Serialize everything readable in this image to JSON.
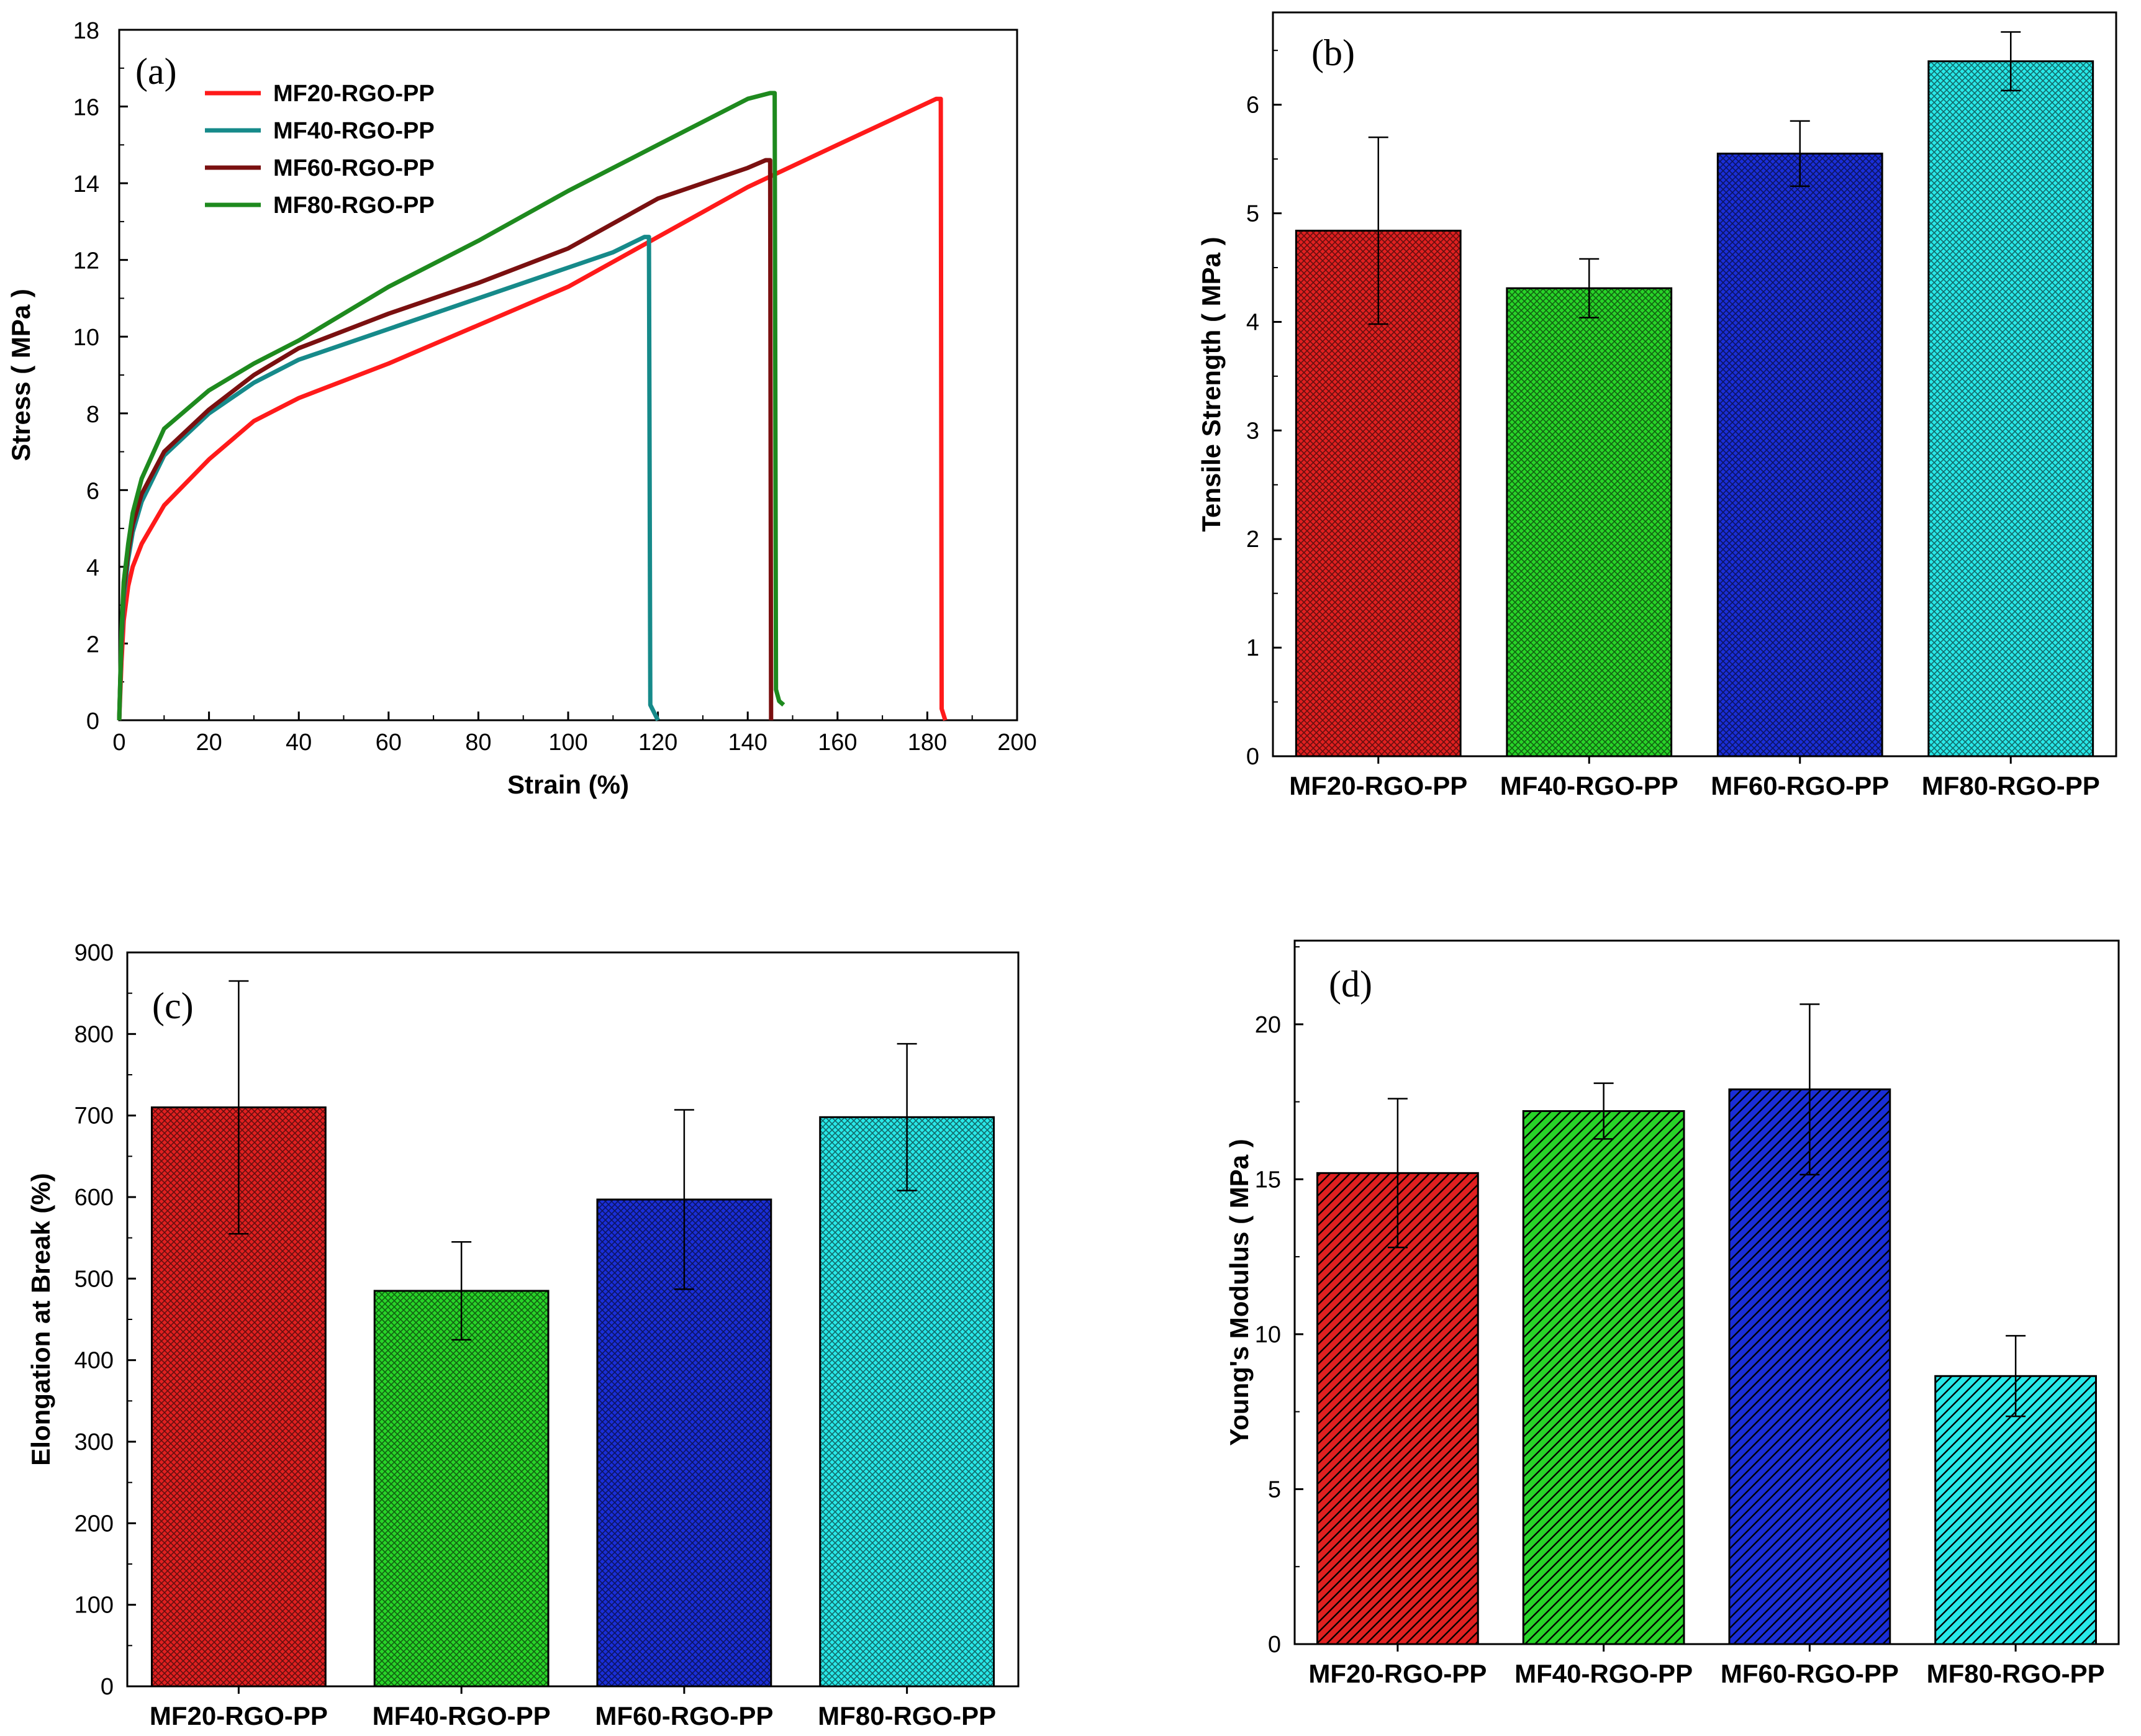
{
  "colors": {
    "red": "#e02020",
    "green": "#28d428",
    "blue": "#1a2ed8",
    "cyan": "#28e8e8",
    "line_red": "#ff1a1a",
    "line_teal": "#168a8a",
    "line_maroon": "#7a1010",
    "line_green": "#1e8a1e"
  },
  "chart_data": [
    {
      "panel": "(a)",
      "type": "line",
      "xlabel": "Strain (%)",
      "ylabel": "Stress ( MPa )",
      "xlim": [
        0,
        200
      ],
      "ylim": [
        0,
        18
      ],
      "xticks": [
        "0",
        "20",
        "40",
        "60",
        "80",
        "100",
        "120",
        "140",
        "160",
        "180",
        "200"
      ],
      "yticks": [
        "0",
        "2",
        "4",
        "6",
        "8",
        "10",
        "12",
        "14",
        "16",
        "18"
      ],
      "legend_position": "top-left",
      "series": [
        {
          "name": "MF20-RGO-PP",
          "color_key": "line_red",
          "x": [
            0,
            0.5,
            1,
            2,
            3,
            5,
            10,
            20,
            30,
            40,
            60,
            80,
            100,
            120,
            140,
            160,
            182,
            183,
            183.2,
            184
          ],
          "y": [
            0,
            1.5,
            2.6,
            3.5,
            4,
            4.6,
            5.6,
            6.8,
            7.8,
            8.4,
            9.3,
            10.3,
            11.3,
            12.6,
            13.9,
            15.0,
            16.2,
            16.2,
            0.3,
            0
          ]
        },
        {
          "name": "MF40-RGO-PP",
          "color_key": "line_teal",
          "x": [
            0,
            0.5,
            1,
            2,
            3,
            5,
            10,
            20,
            30,
            40,
            60,
            80,
            100,
            110,
            117,
            118,
            118.3,
            120
          ],
          "y": [
            0,
            2,
            3.2,
            4.2,
            4.9,
            5.7,
            6.9,
            8.0,
            8.8,
            9.4,
            10.2,
            11.0,
            11.8,
            12.2,
            12.6,
            12.6,
            0.4,
            0
          ]
        },
        {
          "name": "MF60-RGO-PP",
          "color_key": "line_maroon",
          "x": [
            0,
            0.5,
            1,
            2,
            3,
            5,
            10,
            20,
            30,
            40,
            60,
            80,
            100,
            120,
            140,
            144,
            145,
            145.2
          ],
          "y": [
            0,
            2.2,
            3.4,
            4.4,
            5.1,
            5.9,
            7.0,
            8.1,
            9.0,
            9.7,
            10.6,
            11.4,
            12.3,
            13.6,
            14.4,
            14.6,
            14.6,
            0
          ]
        },
        {
          "name": "MF80-RGO-PP",
          "color_key": "line_green",
          "x": [
            0,
            0.5,
            1,
            2,
            3,
            5,
            10,
            20,
            30,
            40,
            60,
            80,
            100,
            120,
            140,
            145,
            146,
            146.3,
            147,
            148
          ],
          "y": [
            0,
            2.3,
            3.6,
            4.6,
            5.4,
            6.3,
            7.6,
            8.6,
            9.3,
            9.9,
            11.3,
            12.5,
            13.8,
            15.0,
            16.2,
            16.35,
            16.35,
            0.8,
            0.5,
            0.4
          ]
        }
      ]
    },
    {
      "panel": "(b)",
      "type": "bar",
      "ylabel": "Tensile Strength ( MPa )",
      "xlabel": "",
      "ylim": [
        0,
        6.85
      ],
      "yticks": [
        "0",
        "1",
        "2",
        "3",
        "4",
        "5",
        "6"
      ],
      "categories": [
        "MF20-RGO-PP",
        "MF40-RGO-PP",
        "MF60-RGO-PP",
        "MF80-RGO-PP"
      ],
      "values": [
        4.84,
        4.31,
        5.55,
        6.4
      ],
      "errors": [
        0.86,
        0.27,
        0.3,
        0.27
      ],
      "color_keys": [
        "red",
        "green",
        "blue",
        "cyan"
      ]
    },
    {
      "panel": "(c)",
      "type": "bar",
      "ylabel": "Elongation at Break (%)",
      "xlabel": "",
      "ylim": [
        0,
        900
      ],
      "yticks": [
        "0",
        "100",
        "200",
        "300",
        "400",
        "500",
        "600",
        "700",
        "800",
        "900"
      ],
      "categories": [
        "MF20-RGO-PP",
        "MF40-RGO-PP",
        "MF60-RGO-PP",
        "MF80-RGO-PP"
      ],
      "values": [
        710,
        485,
        597,
        698
      ],
      "errors": [
        155,
        60,
        110,
        90
      ],
      "color_keys": [
        "red",
        "green",
        "blue",
        "cyan"
      ]
    },
    {
      "panel": "(d)",
      "type": "bar",
      "ylabel": "Young's Modulus ( MPa )",
      "xlabel": "",
      "ylim": [
        0,
        22.7
      ],
      "yticks": [
        "0",
        "5",
        "10",
        "15",
        "20"
      ],
      "categories": [
        "MF20-RGO-PP",
        "MF40-RGO-PP",
        "MF60-RGO-PP",
        "MF80-RGO-PP"
      ],
      "values": [
        15.2,
        17.2,
        17.9,
        8.65
      ],
      "errors": [
        2.4,
        0.9,
        2.75,
        1.3
      ],
      "color_keys": [
        "red",
        "green",
        "blue",
        "cyan"
      ]
    }
  ]
}
